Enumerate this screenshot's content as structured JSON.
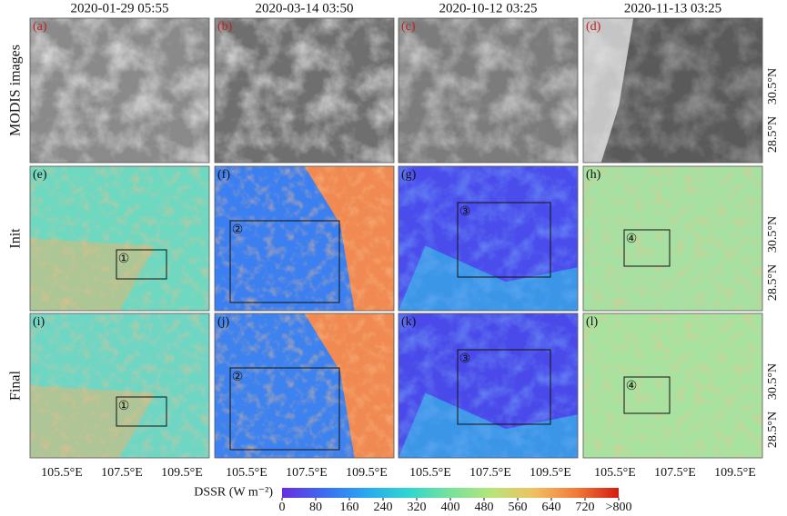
{
  "columns": [
    {
      "date": "2020-01-29 05:55"
    },
    {
      "date": "2020-03-14 03:50"
    },
    {
      "date": "2020-10-12 03:25"
    },
    {
      "date": "2020-11-13 03:25"
    }
  ],
  "rows": [
    {
      "label": "MODIS images",
      "panels": [
        {
          "letter": "(a)"
        },
        {
          "letter": "(b)"
        },
        {
          "letter": "(c)"
        },
        {
          "letter": "(d)"
        }
      ]
    },
    {
      "label": "Init",
      "panels": [
        {
          "letter": "(e)",
          "region": "①"
        },
        {
          "letter": "(f)",
          "region": "②"
        },
        {
          "letter": "(g)",
          "region": "③"
        },
        {
          "letter": "(h)",
          "region": "④"
        }
      ]
    },
    {
      "label": "Final",
      "panels": [
        {
          "letter": "(i)",
          "region": "①"
        },
        {
          "letter": "(j)",
          "region": "②"
        },
        {
          "letter": "(k)",
          "region": "③"
        },
        {
          "letter": "(l)",
          "region": "④"
        }
      ]
    }
  ],
  "latitude_labels": [
    "30.5°N",
    "28.5°N"
  ],
  "longitude_labels": [
    "105.5°E",
    "107.5°E",
    "109.5°E"
  ],
  "colorbar": {
    "label": "DSSR (W m⁻²)",
    "lim": [
      0,
      800
    ],
    "ticks": [
      0,
      80,
      160,
      240,
      320,
      400,
      480,
      560,
      640,
      720,
      {
        "value": 800,
        "label": ">800"
      }
    ],
    "colormap": [
      "#6a2de0",
      "#3b6cf2",
      "#2aa8f0",
      "#2fd6d0",
      "#78e29a",
      "#b8e47a",
      "#f0c060",
      "#f07a3a",
      "#d41a10"
    ]
  }
}
